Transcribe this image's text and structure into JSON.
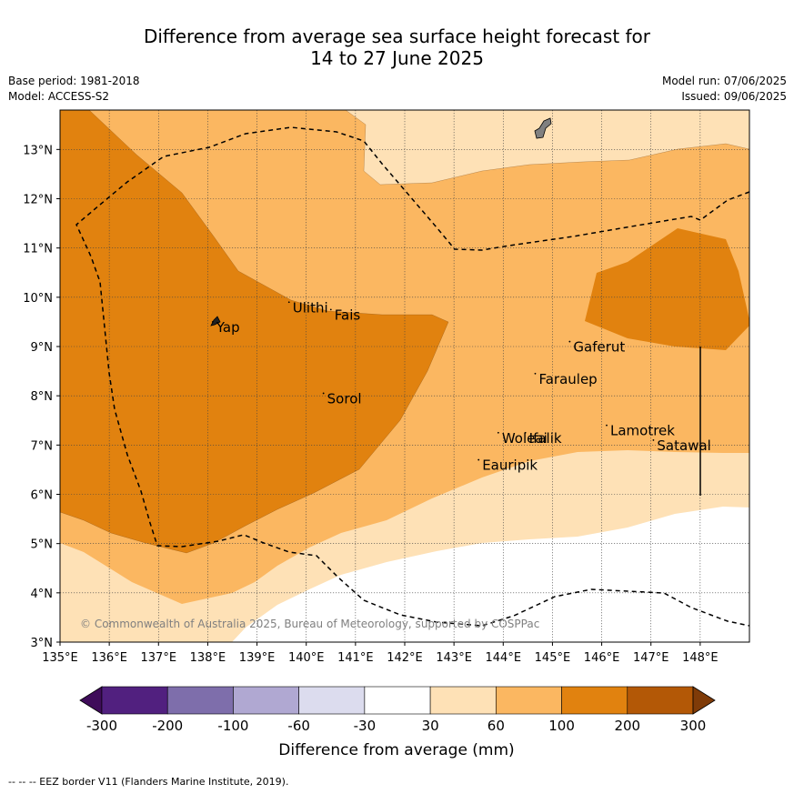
{
  "title": {
    "line1": "Difference from average sea surface height forecast for",
    "line2": "14 to 27 June 2025"
  },
  "meta": {
    "base_period": "Base period: 1981-2018",
    "model": "Model: ACCESS-S2",
    "model_run": "Model run: 07/06/2025",
    "issued": "Issued: 09/06/2025"
  },
  "map": {
    "extent": {
      "lon": [
        135,
        149
      ],
      "lat": [
        3,
        13.8
      ]
    },
    "lon_ticks": [
      {
        "value": 135,
        "label": "135°E"
      },
      {
        "value": 136,
        "label": "136°E"
      },
      {
        "value": 137,
        "label": "137°E"
      },
      {
        "value": 138,
        "label": "138°E"
      },
      {
        "value": 139,
        "label": "139°E"
      },
      {
        "value": 140,
        "label": "140°E"
      },
      {
        "value": 141,
        "label": "141°E"
      },
      {
        "value": 142,
        "label": "142°E"
      },
      {
        "value": 143,
        "label": "143°E"
      },
      {
        "value": 144,
        "label": "144°E"
      },
      {
        "value": 145,
        "label": "145°E"
      },
      {
        "value": 146,
        "label": "146°E"
      },
      {
        "value": 147,
        "label": "147°E"
      },
      {
        "value": 148,
        "label": "148°E"
      }
    ],
    "lat_ticks": [
      {
        "value": 3,
        "label": "3°N"
      },
      {
        "value": 4,
        "label": "4°N"
      },
      {
        "value": 5,
        "label": "5°N"
      },
      {
        "value": 6,
        "label": "6°N"
      },
      {
        "value": 7,
        "label": "7°N"
      },
      {
        "value": 8,
        "label": "8°N"
      },
      {
        "value": 9,
        "label": "9°N"
      },
      {
        "value": 10,
        "label": "10°N"
      },
      {
        "value": 11,
        "label": "11°N"
      },
      {
        "value": 12,
        "label": "12°N"
      },
      {
        "value": 13,
        "label": "13°N"
      }
    ],
    "places": [
      {
        "name": "Yap",
        "lon": 138.1,
        "lat": 9.5
      },
      {
        "name": "Ulithi",
        "lon": 139.65,
        "lat": 9.9
      },
      {
        "name": "Fais",
        "lon": 140.5,
        "lat": 9.75
      },
      {
        "name": "Gaferut",
        "lon": 145.35,
        "lat": 9.1
      },
      {
        "name": "Faraulep",
        "lon": 144.65,
        "lat": 8.45
      },
      {
        "name": "Sorol",
        "lon": 140.35,
        "lat": 8.05
      },
      {
        "name": "Woleai",
        "lon": 143.9,
        "lat": 7.25
      },
      {
        "name": "Ifalik",
        "lon": 144.45,
        "lat": 7.25
      },
      {
        "name": "Lamotrek",
        "lon": 146.1,
        "lat": 7.4
      },
      {
        "name": "Satawal",
        "lon": 147.05,
        "lat": 7.1
      },
      {
        "name": "Eauripik",
        "lon": 143.5,
        "lat": 6.7
      }
    ],
    "copyright": "© Commonwealth of Australia 2025, Bureau of Meteorology, supported by COSPPac"
  },
  "legend": {
    "title": "Difference from average (mm)",
    "tick_labels": [
      "-300",
      "-200",
      "-100",
      "-60",
      "-30",
      "30",
      "60",
      "100",
      "200",
      "300"
    ],
    "colors": [
      "#3f0c5a",
      "#51207f",
      "#7e6eab",
      "#b0a8d2",
      "#dcdcee",
      "#ffffff",
      "#fee1b6",
      "#fbb761",
      "#e1820f",
      "#b35806",
      "#7f3b08"
    ]
  },
  "footer": "--  --  -- EEZ border V11 (Flanders Marine Institute, 2019)."
}
